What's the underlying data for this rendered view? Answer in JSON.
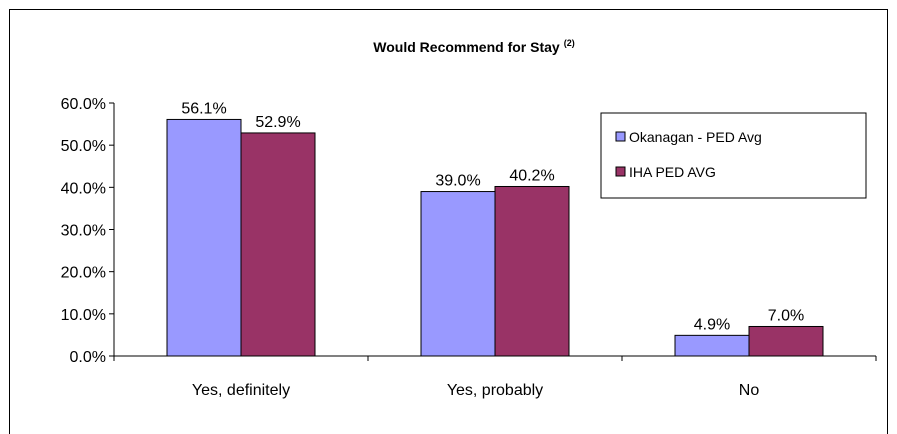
{
  "chart_data": {
    "type": "bar",
    "title": "Would Recommend for Stay",
    "title_superscript": "(2)",
    "categories": [
      "Yes, definitely",
      "Yes, probably",
      "No"
    ],
    "series": [
      {
        "name": "Okanagan - PED Avg",
        "values": [
          56.1,
          39.0,
          4.9
        ],
        "color": "#9999FF",
        "labels": [
          "56.1%",
          "39.0%",
          "4.9%"
        ]
      },
      {
        "name": "IHA PED AVG",
        "values": [
          52.9,
          40.2,
          7.0
        ],
        "color": "#993366",
        "labels": [
          "52.9%",
          "40.2%",
          "7.0%"
        ]
      }
    ],
    "ylim": [
      0,
      60
    ],
    "yticks": [
      "0.0%",
      "10.0%",
      "20.0%",
      "30.0%",
      "40.0%",
      "50.0%",
      "60.0%"
    ],
    "ytick_values": [
      0,
      10,
      20,
      30,
      40,
      50,
      60
    ],
    "xlabel": "",
    "ylabel": "",
    "grid": false,
    "legend_position": "top-right"
  }
}
